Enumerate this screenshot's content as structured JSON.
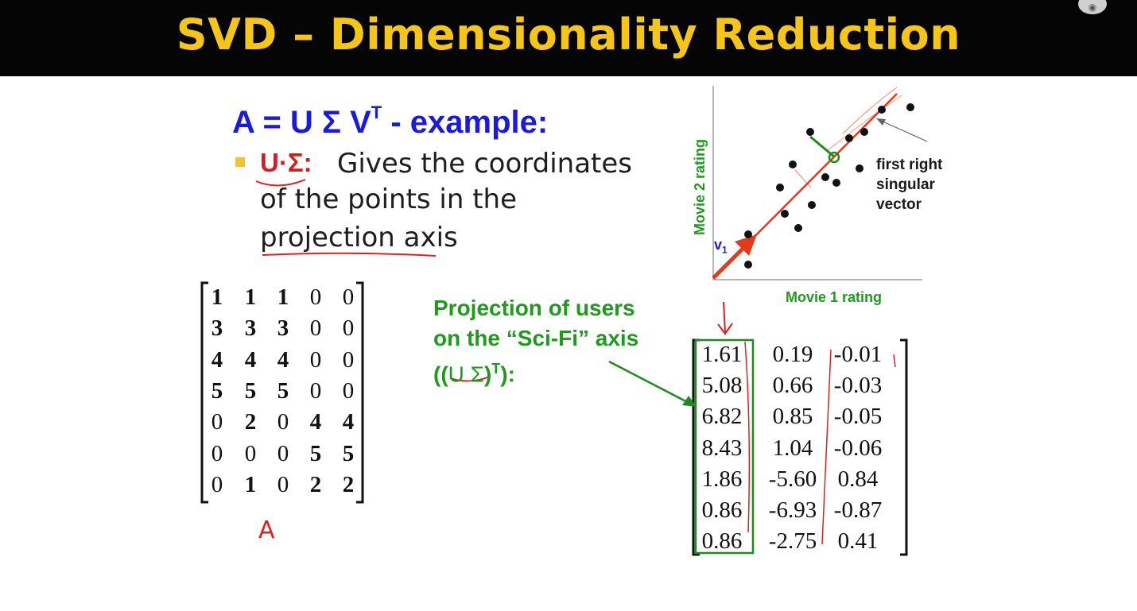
{
  "title": "SVD – Dimensionality Reduction",
  "heading": {
    "main": "A = U Σ V",
    "sup": "T",
    "tail": " - example:"
  },
  "bullet": {
    "term": "U·Σ:",
    "lines": [
      "Gives the coordinates",
      "of the points in the",
      "projection axis"
    ]
  },
  "matrix_A": {
    "rows": [
      [
        "1",
        "1",
        "1",
        "0",
        "0"
      ],
      [
        "3",
        "3",
        "3",
        "0",
        "0"
      ],
      [
        "4",
        "4",
        "4",
        "0",
        "0"
      ],
      [
        "5",
        "5",
        "5",
        "0",
        "0"
      ],
      [
        "0",
        "2",
        "0",
        "4",
        "4"
      ],
      [
        "0",
        "0",
        "0",
        "5",
        "5"
      ],
      [
        "0",
        "1",
        "0",
        "2",
        "2"
      ]
    ],
    "handwritten_label": "A"
  },
  "projection_label": {
    "line1": "Projection of users",
    "line2": "on the “Sci-Fi” axis",
    "line3_open": "((",
    "line3_us": "U Σ",
    "line3_close": ")",
    "line3_sup": "T",
    "line3_end": "):"
  },
  "matrix_US": {
    "rows": [
      [
        "1.61",
        "0.19",
        "-0.01"
      ],
      [
        "5.08",
        "0.66",
        "-0.03"
      ],
      [
        "6.82",
        "0.85",
        "-0.05"
      ],
      [
        "8.43",
        "1.04",
        "-0.06"
      ],
      [
        "1.86",
        "-5.60",
        "0.84"
      ],
      [
        "0.86",
        "-6.93",
        "-0.87"
      ],
      [
        "0.86",
        "-2.75",
        "0.41"
      ]
    ]
  },
  "scatter": {
    "y_axis_label": "Movie 2 rating",
    "x_axis_label": "Movie 1 rating",
    "vector_label": "v",
    "vector_sub": "1",
    "annotation": [
      "first right",
      "singular",
      "vector"
    ]
  },
  "colors": {
    "title": "#f5c518",
    "heading": "#1a1adc",
    "green": "#1f9a1f",
    "red": "#d22020",
    "ink": "#e02020"
  },
  "icons": {
    "corner": "overlay-toggle-icon"
  }
}
